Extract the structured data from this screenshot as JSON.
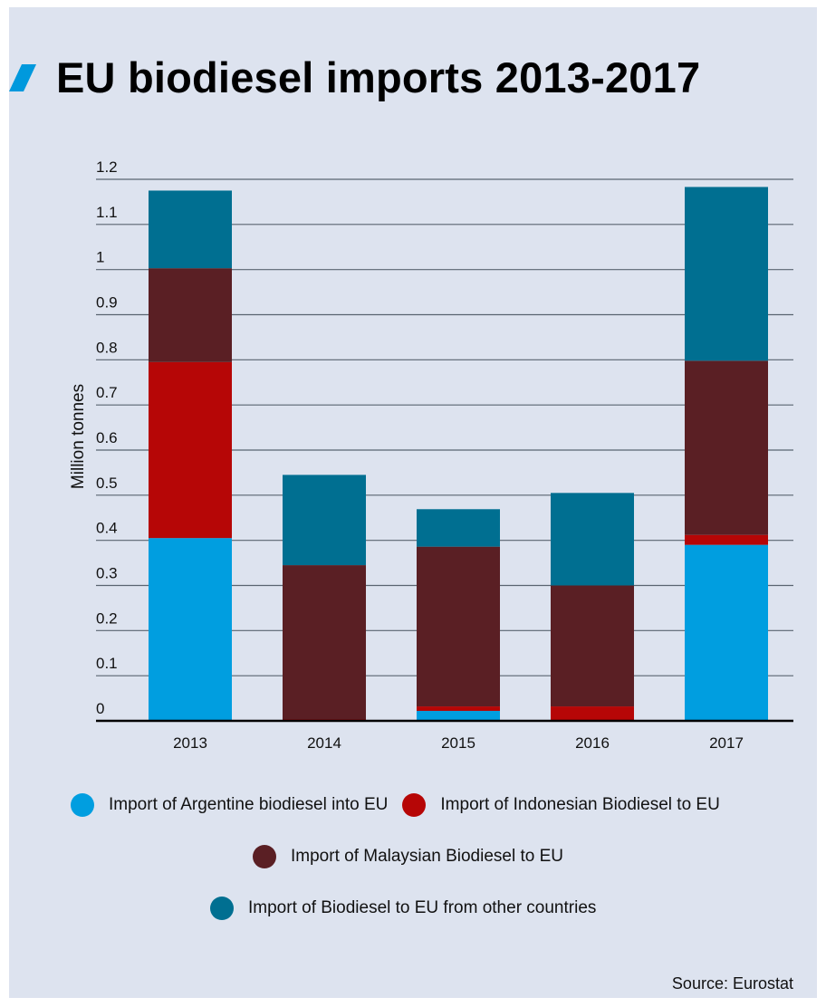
{
  "title": "EU biodiesel imports 2013-2017",
  "source": "Source: Eurostat",
  "colors": {
    "background": "#dde3ef",
    "accent": "#0099dd",
    "argentina": "#009ee0",
    "indonesia": "#b60606",
    "malaysia": "#5a1f24",
    "other": "#006f91"
  },
  "chart_data": {
    "type": "bar",
    "stacked": true,
    "categories": [
      "2013",
      "2014",
      "2015",
      "2016",
      "2017"
    ],
    "ylabel": "Million tonnes",
    "xlabel": "",
    "ylim": [
      0,
      1.2
    ],
    "yticks": [
      "0",
      "0.1",
      "0.2",
      "0.3",
      "0.4",
      "0.5",
      "0.6",
      "0.7",
      "0.8",
      "0.9",
      "1",
      "1.1",
      "1.2"
    ],
    "grid": true,
    "legend_position": "bottom",
    "series": [
      {
        "name": "Import of Argentine biodiesel into EU",
        "color": "#009ee0",
        "values": [
          0.405,
          0.0,
          0.022,
          0.0,
          0.39
        ]
      },
      {
        "name": "Import of Indonesian Biodiesel to EU",
        "color": "#b60606",
        "values": [
          0.39,
          0.003,
          0.01,
          0.032,
          0.022
        ]
      },
      {
        "name": "Import of Malaysian Biodiesel to EU",
        "color": "#5a1f24",
        "values": [
          0.208,
          0.342,
          0.354,
          0.268,
          0.386
        ]
      },
      {
        "name": "Import of Biodiesel to EU from other countries",
        "color": "#006f91",
        "values": [
          0.172,
          0.2,
          0.083,
          0.205,
          0.385
        ]
      }
    ]
  }
}
